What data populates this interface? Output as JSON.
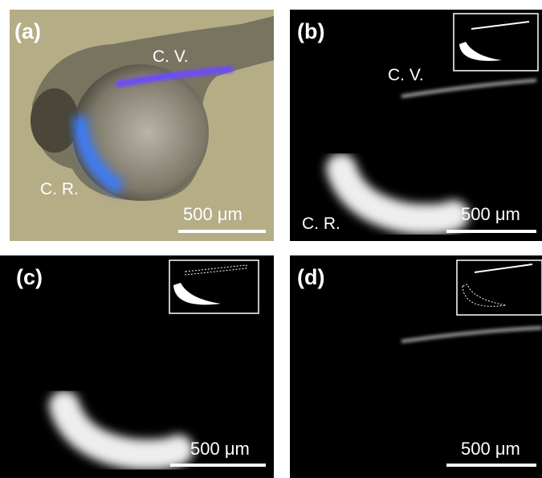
{
  "panels": [
    {
      "label": "(a)",
      "annotations": [
        "C. V.",
        "C. R."
      ],
      "scale_bar": "500 μm"
    },
    {
      "label": "(b)",
      "annotations": [
        "C. V.",
        "C. R."
      ],
      "scale_bar": "500 μm"
    },
    {
      "label": "(c)",
      "scale_bar": "500 μm"
    },
    {
      "label": "(d)",
      "scale_bar": "500 μm"
    }
  ]
}
